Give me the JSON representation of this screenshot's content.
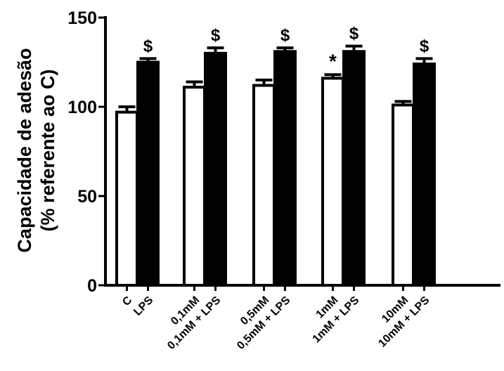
{
  "chart_data": {
    "type": "bar",
    "ylabel_line1": "Capacidade de  adesão",
    "ylabel_line2": "(% referente ao C)",
    "ylim": [
      0,
      150
    ],
    "yticks": [
      "0",
      "50",
      "100",
      "150"
    ],
    "grid": false,
    "legend": "none",
    "categories": [
      "C",
      "LPS",
      "0,1mM",
      "0,1mM + LPS",
      "0,5mM",
      "0,5mM + LPS",
      "1mM",
      "1mM + LPS",
      "10mM",
      "10mM + LPS"
    ],
    "values": [
      97,
      125,
      111,
      130,
      112,
      131,
      116,
      131,
      101,
      124
    ],
    "errors": [
      3,
      2,
      3,
      3,
      3,
      2,
      2,
      3,
      2,
      3
    ],
    "fills": [
      "#ffffff",
      "#000000",
      "#ffffff",
      "#000000",
      "#ffffff",
      "#000000",
      "#ffffff",
      "#000000",
      "#ffffff",
      "#000000"
    ],
    "annotations": [
      "",
      "$",
      "",
      "$",
      "",
      "$",
      "*",
      "$",
      "",
      "$"
    ]
  }
}
